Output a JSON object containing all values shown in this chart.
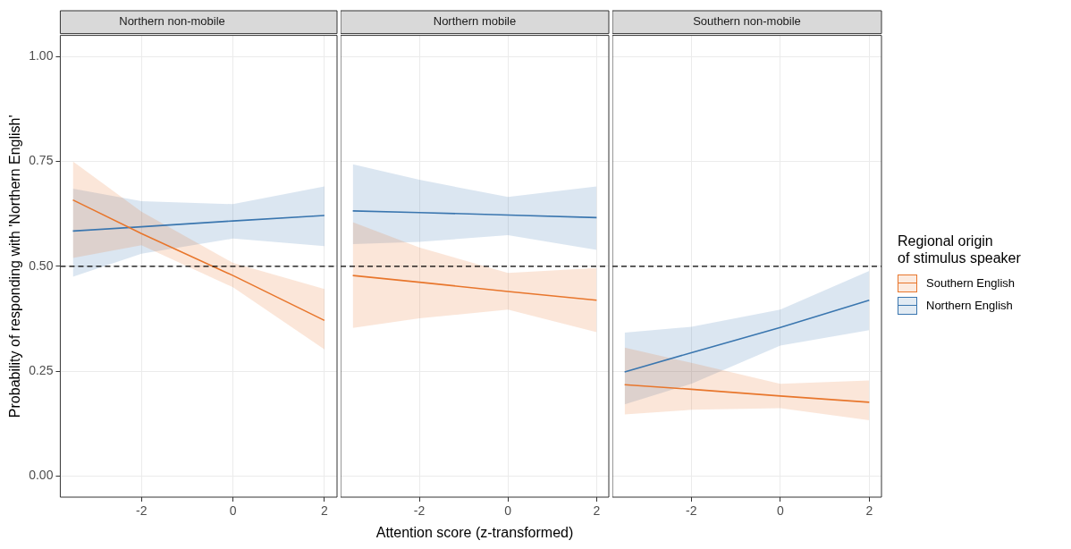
{
  "chart_data": [
    {
      "type": "line",
      "title": "Northern non-mobile",
      "ylabel": "Probability of responding with 'Northern English'",
      "x": [
        -3.5,
        -2,
        0,
        2
      ],
      "xlim": [
        -3.775,
        2.275
      ],
      "xticks": [
        -2,
        0,
        2
      ],
      "ylim": [
        -0.05,
        1.05
      ],
      "yticks": [
        {
          "value": 0,
          "label": "0.00"
        },
        {
          "value": 0.25,
          "label": "0.25"
        },
        {
          "value": 0.5,
          "label": "0.50"
        },
        {
          "value": 0.75,
          "label": "0.75"
        },
        {
          "value": 1,
          "label": "1.00"
        }
      ],
      "grid": true,
      "marker": "none",
      "ref_lines": [
        {
          "axis": "y",
          "value": 0.5,
          "color": "#000000",
          "line_style": "dashed"
        }
      ],
      "series": [
        {
          "color": "#e8762c",
          "values": [
            0.658,
            0.578,
            0.478,
            0.371
          ],
          "lower": [
            0.52,
            0.55,
            0.45,
            0.302
          ],
          "upper": [
            0.75,
            0.63,
            0.508,
            0.446
          ]
        },
        {
          "color": "#3a76af",
          "values": [
            0.584,
            0.594,
            0.608,
            0.621
          ],
          "lower": [
            0.475,
            0.53,
            0.566,
            0.548
          ],
          "upper": [
            0.685,
            0.655,
            0.648,
            0.69
          ]
        }
      ]
    },
    {
      "type": "line",
      "title": "Northern mobile",
      "xlabel": "Attention score (z-transformed)",
      "x": [
        -3.5,
        -2,
        0,
        2
      ],
      "xlim": [
        -3.775,
        2.275
      ],
      "xticks": [
        -2,
        0,
        2
      ],
      "ylim": [
        -0.05,
        1.05
      ],
      "yticks": [
        0,
        0.25,
        0.5,
        0.75,
        1
      ],
      "tick_labels": "x",
      "grid": true,
      "marker": "none",
      "ref_lines": [
        {
          "axis": "y",
          "value": 0.5,
          "color": "#000000",
          "line_style": "dashed"
        }
      ],
      "series": [
        {
          "color": "#e8762c",
          "values": [
            0.478,
            0.462,
            0.44,
            0.419
          ],
          "lower": [
            0.353,
            0.376,
            0.397,
            0.343
          ],
          "upper": [
            0.605,
            0.545,
            0.484,
            0.496
          ]
        },
        {
          "color": "#3a76af",
          "values": [
            0.632,
            0.628,
            0.622,
            0.616
          ],
          "lower": [
            0.553,
            0.558,
            0.574,
            0.539
          ],
          "upper": [
            0.743,
            0.706,
            0.665,
            0.69
          ]
        }
      ]
    },
    {
      "type": "line",
      "title": "Southern non-mobile",
      "legend": "right",
      "legend_title": "Regional origin\nof stimulus speaker",
      "x": [
        -3.5,
        -2,
        0,
        2
      ],
      "xlim": [
        -3.775,
        2.275
      ],
      "xticks": [
        -2,
        0,
        2
      ],
      "ylim": [
        -0.05,
        1.05
      ],
      "yticks": [
        0,
        0.25,
        0.5,
        0.75,
        1
      ],
      "tick_labels": "x",
      "grid": true,
      "marker": "none",
      "ref_lines": [
        {
          "axis": "y",
          "value": 0.5,
          "color": "#000000",
          "line_style": "dashed"
        }
      ],
      "series": [
        {
          "name": "Southern English",
          "color": "#e8762c",
          "values": [
            0.218,
            0.207,
            0.191,
            0.176
          ],
          "lower": [
            0.147,
            0.158,
            0.162,
            0.133
          ],
          "upper": [
            0.306,
            0.27,
            0.22,
            0.228
          ]
        },
        {
          "name": "Northern English",
          "color": "#3a76af",
          "values": [
            0.248,
            0.294,
            0.354,
            0.419
          ],
          "lower": [
            0.171,
            0.22,
            0.311,
            0.348
          ],
          "upper": [
            0.342,
            0.356,
            0.397,
            0.489
          ]
        }
      ]
    }
  ]
}
